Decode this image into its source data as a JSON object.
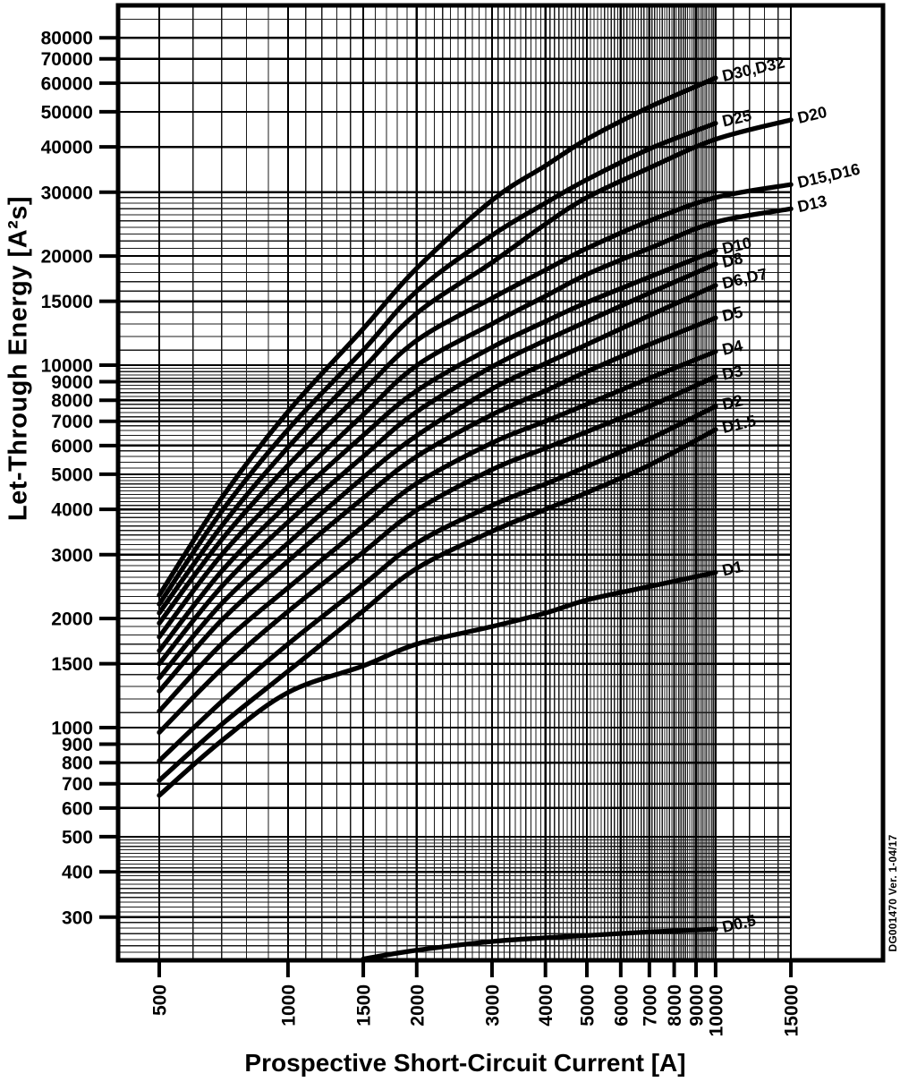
{
  "chart": {
    "y_axis_title": "Let-Through Energy [A²s]",
    "x_axis_title": "Prospective Short-Circuit Current [A]",
    "doc_ref": "DG001470 Ver. 1-04/17"
  },
  "chart_data": {
    "type": "line",
    "title": "",
    "xlabel": "Prospective Short-Circuit Current [A]",
    "ylabel": "Let-Through Energy [A²s]",
    "x_scale": "log",
    "y_scale": "log",
    "xlim": [
      400,
      15000
    ],
    "ylim": [
      228,
      98000
    ],
    "grid": "on",
    "legend_position": "inline-labels-right",
    "color": "#000000",
    "x_tick_labels": [
      500,
      1000,
      1500,
      2000,
      3000,
      4000,
      5000,
      6000,
      7000,
      8000,
      9000,
      10000,
      15000
    ],
    "y_tick_labels": [
      300,
      400,
      500,
      600,
      700,
      800,
      900,
      1000,
      1500,
      2000,
      3000,
      4000,
      5000,
      6000,
      7000,
      8000,
      9000,
      10000,
      15000,
      20000,
      30000,
      40000,
      50000,
      60000,
      70000,
      80000
    ],
    "series": [
      {
        "name": "D30,D32",
        "points": [
          [
            500,
            2320
          ],
          [
            700,
            4300
          ],
          [
            1000,
            7440
          ],
          [
            1500,
            12600
          ],
          [
            2000,
            18500
          ],
          [
            3000,
            28500
          ],
          [
            4000,
            35500
          ],
          [
            5000,
            42000
          ],
          [
            7000,
            51500
          ],
          [
            10000,
            62000
          ]
        ]
      },
      {
        "name": "D25",
        "points": [
          [
            500,
            2190
          ],
          [
            700,
            3950
          ],
          [
            1000,
            6640
          ],
          [
            1500,
            11000
          ],
          [
            2000,
            16000
          ],
          [
            3000,
            22800
          ],
          [
            4000,
            28000
          ],
          [
            5000,
            32500
          ],
          [
            7000,
            39500
          ],
          [
            10000,
            46500
          ]
        ]
      },
      {
        "name": "D20",
        "points": [
          [
            500,
            2070
          ],
          [
            700,
            3600
          ],
          [
            1000,
            5930
          ],
          [
            1500,
            9800
          ],
          [
            2000,
            13900
          ],
          [
            3000,
            19200
          ],
          [
            4000,
            24500
          ],
          [
            5000,
            29000
          ],
          [
            7000,
            35000
          ],
          [
            10000,
            42000
          ],
          [
            15000,
            47500
          ]
        ]
      },
      {
        "name": "D15,D16",
        "points": [
          [
            500,
            1940
          ],
          [
            700,
            3300
          ],
          [
            1000,
            5290
          ],
          [
            1500,
            8500
          ],
          [
            2000,
            11700
          ],
          [
            3000,
            15300
          ],
          [
            4000,
            18300
          ],
          [
            5000,
            21000
          ],
          [
            7000,
            25000
          ],
          [
            10000,
            29000
          ],
          [
            15000,
            31500
          ]
        ]
      },
      {
        "name": "D13",
        "points": [
          [
            500,
            1780
          ],
          [
            700,
            3000
          ],
          [
            1000,
            4630
          ],
          [
            1500,
            7300
          ],
          [
            2000,
            9980
          ],
          [
            3000,
            13000
          ],
          [
            4000,
            15500
          ],
          [
            5000,
            17800
          ],
          [
            7000,
            21000
          ],
          [
            10000,
            24800
          ],
          [
            15000,
            27000
          ]
        ]
      },
      {
        "name": "D10",
        "points": [
          [
            500,
            1630
          ],
          [
            700,
            2700
          ],
          [
            1000,
            4140
          ],
          [
            1500,
            6400
          ],
          [
            2000,
            8500
          ],
          [
            3000,
            11200
          ],
          [
            4000,
            13200
          ],
          [
            5000,
            14900
          ],
          [
            7000,
            17500
          ],
          [
            10000,
            20700
          ]
        ]
      },
      {
        "name": "D8",
        "points": [
          [
            500,
            1500
          ],
          [
            700,
            2450
          ],
          [
            1000,
            3690
          ],
          [
            1500,
            5600
          ],
          [
            2000,
            7440
          ],
          [
            3000,
            9900
          ],
          [
            4000,
            11700
          ],
          [
            5000,
            13200
          ],
          [
            7000,
            15800
          ],
          [
            10000,
            19000
          ]
        ]
      },
      {
        "name": "D6,D7",
        "points": [
          [
            500,
            1370
          ],
          [
            700,
            2200
          ],
          [
            1000,
            3230
          ],
          [
            1500,
            4900
          ],
          [
            2000,
            6390
          ],
          [
            3000,
            8600
          ],
          [
            4000,
            10100
          ],
          [
            5000,
            11400
          ],
          [
            7000,
            13700
          ],
          [
            10000,
            16600
          ]
        ]
      },
      {
        "name": "D5",
        "points": [
          [
            500,
            1260
          ],
          [
            700,
            1980
          ],
          [
            1000,
            2880
          ],
          [
            1500,
            4300
          ],
          [
            2000,
            5600
          ],
          [
            3000,
            7300
          ],
          [
            4000,
            8500
          ],
          [
            5000,
            9600
          ],
          [
            7000,
            11400
          ],
          [
            10000,
            13500
          ]
        ]
      },
      {
        "name": "D4",
        "points": [
          [
            500,
            1110
          ],
          [
            700,
            1700
          ],
          [
            1000,
            2430
          ],
          [
            1500,
            3600
          ],
          [
            2000,
            4720
          ],
          [
            3000,
            6100
          ],
          [
            4000,
            7000
          ],
          [
            5000,
            7800
          ],
          [
            7000,
            9200
          ],
          [
            10000,
            10900
          ]
        ]
      },
      {
        "name": "D3",
        "points": [
          [
            500,
            970
          ],
          [
            700,
            1450
          ],
          [
            1000,
            2090
          ],
          [
            1500,
            3050
          ],
          [
            2000,
            3980
          ],
          [
            3000,
            5150
          ],
          [
            4000,
            5900
          ],
          [
            5000,
            6550
          ],
          [
            7000,
            7700
          ],
          [
            10000,
            9300
          ]
        ]
      },
      {
        "name": "D2",
        "points": [
          [
            500,
            810
          ],
          [
            700,
            1180
          ],
          [
            1000,
            1700
          ],
          [
            1500,
            2480
          ],
          [
            2000,
            3230
          ],
          [
            3000,
            4100
          ],
          [
            4000,
            4700
          ],
          [
            5000,
            5250
          ],
          [
            7000,
            6250
          ],
          [
            10000,
            7700
          ]
        ]
      },
      {
        "name": "D1.5",
        "points": [
          [
            500,
            715
          ],
          [
            700,
            1020
          ],
          [
            1000,
            1430
          ],
          [
            1500,
            2100
          ],
          [
            2000,
            2750
          ],
          [
            3000,
            3480
          ],
          [
            4000,
            4000
          ],
          [
            5000,
            4450
          ],
          [
            7000,
            5300
          ],
          [
            10000,
            6640
          ]
        ]
      },
      {
        "name": "D1",
        "points": [
          [
            500,
            650
          ],
          [
            700,
            920
          ],
          [
            1000,
            1250
          ],
          [
            1500,
            1480
          ],
          [
            2000,
            1700
          ],
          [
            3000,
            1900
          ],
          [
            4000,
            2070
          ],
          [
            5000,
            2250
          ],
          [
            7000,
            2450
          ],
          [
            10000,
            2680
          ]
        ]
      },
      {
        "name": "D0.5",
        "points": [
          [
            1500,
            230
          ],
          [
            2000,
            243
          ],
          [
            3000,
            257
          ],
          [
            4000,
            263
          ],
          [
            5000,
            267
          ],
          [
            7000,
            273
          ],
          [
            10000,
            278
          ]
        ]
      }
    ]
  }
}
